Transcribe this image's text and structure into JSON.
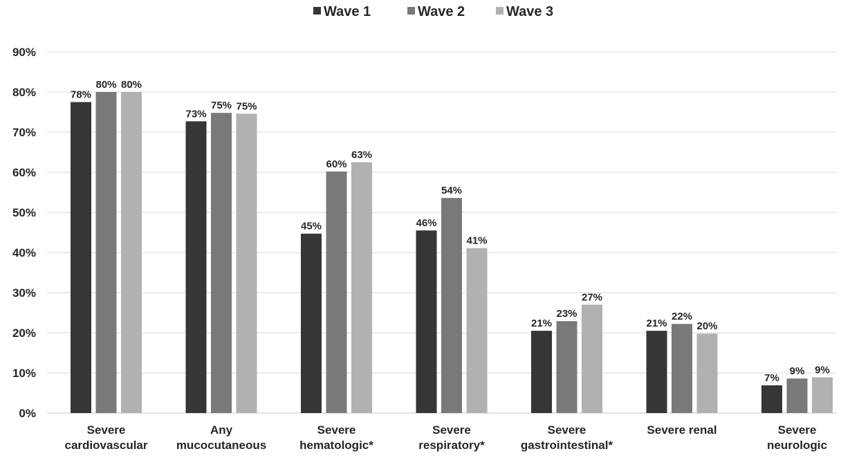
{
  "chart_data": {
    "type": "bar",
    "title": "",
    "xlabel": "",
    "ylabel": "",
    "ylim": [
      0,
      90
    ],
    "y_ticks": [
      0,
      10,
      20,
      30,
      40,
      50,
      60,
      70,
      80,
      90
    ],
    "y_tick_labels": [
      "0%",
      "10%",
      "20%",
      "30%",
      "40%",
      "50%",
      "60%",
      "70%",
      "80%",
      "90%"
    ],
    "grid": true,
    "legend_position": "top-center",
    "categories": [
      [
        "Severe",
        "cardiovascular"
      ],
      [
        "Any",
        "mucocutaneous"
      ],
      [
        "Severe",
        "hematologic*"
      ],
      [
        "Severe",
        "respiratory*"
      ],
      [
        "Severe",
        "gastrointestinal*"
      ],
      [
        "Severe renal"
      ],
      [
        "Severe",
        "neurologic"
      ]
    ],
    "series": [
      {
        "name": "Wave 1",
        "color": "#363636",
        "values": [
          77.5,
          72.7,
          44.7,
          45.5,
          20.5,
          20.5,
          6.9
        ],
        "labels": [
          "78%",
          "73%",
          "45%",
          "46%",
          "21%",
          "21%",
          "7%"
        ]
      },
      {
        "name": "Wave 2",
        "color": "#7b7878",
        "values": [
          80.0,
          74.8,
          60.2,
          53.6,
          22.9,
          22.2,
          8.6
        ],
        "labels": [
          "80%",
          "75%",
          "60%",
          "54%",
          "23%",
          "22%",
          "9%"
        ]
      },
      {
        "name": "Wave 3",
        "color": "#b2b0b0",
        "values": [
          80.0,
          74.6,
          62.5,
          41.1,
          27.0,
          19.8,
          8.9
        ],
        "labels": [
          "80%",
          "75%",
          "63%",
          "41%",
          "27%",
          "20%",
          "9%"
        ]
      }
    ]
  }
}
